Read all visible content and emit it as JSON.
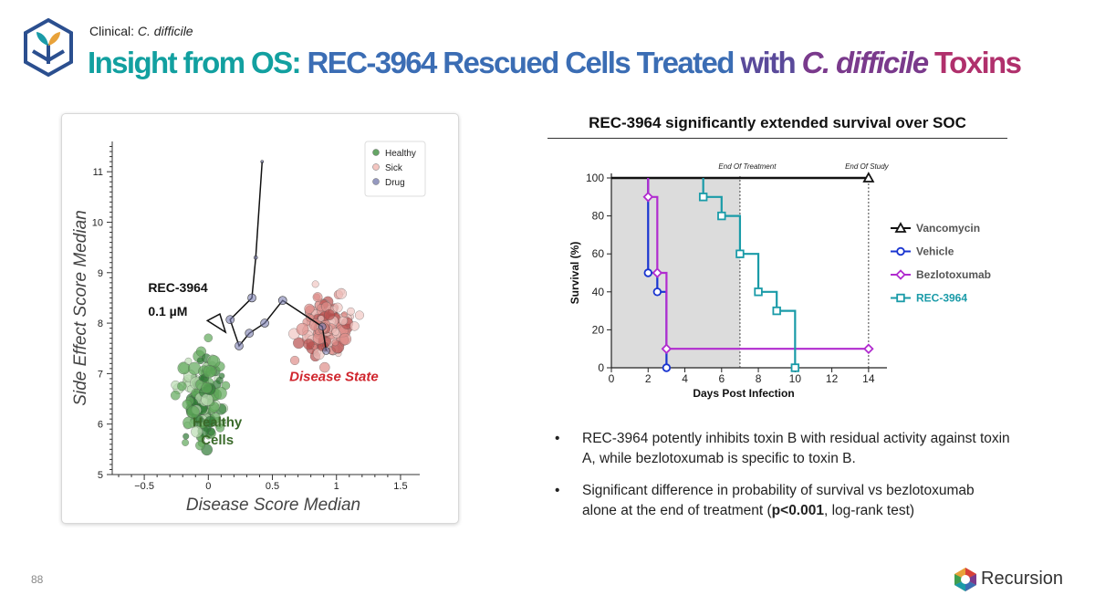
{
  "header": {
    "crumb_prefix": "Clinical:",
    "crumb_italic": "C. difficile",
    "title_parts": [
      "Insight from OS: REC-3964 Rescued Cells Treated ",
      "with ",
      "C. difficile",
      " Toxins"
    ]
  },
  "footer": {
    "page_number": "88",
    "brand": "Recursion"
  },
  "bullets": [
    {
      "text": "REC-3964 potently inhibits toxin B with residual activity against toxin A, while bezlotoxumab is specific to toxin B."
    },
    {
      "before": "Significant difference in probability of survival vs bezlotoxumab alone at the end of treatment (",
      "bold": "p<0.001",
      "after": ", log-rank test)"
    }
  ],
  "bullet_symbol": "•",
  "colors": {
    "healthy": "#3f8f3f",
    "sick": "#d9797a",
    "drug": "#7b7fb0",
    "vancomycin": "#111111",
    "vehicle": "#1a35d0",
    "bezlotoxumab": "#b12ccf",
    "rec3964": "#1a9ba8"
  },
  "chart_data": [
    {
      "type": "scatter",
      "xlabel": "Disease Score Median",
      "ylabel": "Side Effect Score Median",
      "xlim": [
        -0.75,
        1.65
      ],
      "ylim": [
        5.0,
        11.6
      ],
      "xticks": [
        -0.5,
        0,
        0.5,
        1,
        1.5
      ],
      "xtick_labels": [
        "−0.5",
        "0",
        "0.5",
        "1",
        "1.5"
      ],
      "yticks": [
        5,
        6,
        7,
        8,
        9,
        10,
        11
      ],
      "legend": {
        "placement": "top-right",
        "entries": [
          "Healthy",
          "Sick",
          "Drug"
        ]
      },
      "clusters": [
        {
          "name": "Healthy",
          "center": [
            -0.04,
            6.55
          ],
          "spread": [
            0.07,
            0.42
          ],
          "count": 170
        },
        {
          "name": "Sick",
          "center": [
            0.92,
            7.92
          ],
          "spread": [
            0.09,
            0.32
          ],
          "count": 170
        }
      ],
      "drug_trajectory": [
        [
          0.92,
          7.45
        ],
        [
          0.89,
          7.93
        ],
        [
          0.58,
          8.45
        ],
        [
          0.44,
          8.0
        ],
        [
          0.32,
          7.8
        ],
        [
          0.24,
          7.55
        ],
        [
          0.17,
          8.07
        ],
        [
          0.34,
          8.5
        ],
        [
          0.37,
          9.3
        ],
        [
          0.42,
          11.2
        ]
      ],
      "annotations": [
        {
          "text": "REC-3964",
          "at": [
            -0.47,
            8.62
          ]
        },
        {
          "text": "0.1 µM",
          "at": [
            -0.47,
            8.15
          ]
        },
        {
          "text": "Disease State",
          "at": [
            0.98,
            6.85
          ]
        },
        {
          "text": "Healthy",
          "at": [
            0.07,
            5.95
          ]
        },
        {
          "text": "Cells",
          "at": [
            0.07,
            5.6
          ]
        }
      ]
    },
    {
      "type": "line",
      "title": "REC-3964 significantly extended survival over SOC",
      "xlabel": "Days Post Infection",
      "ylabel": "Survival (%)",
      "xlim": [
        0,
        15
      ],
      "ylim": [
        0,
        100
      ],
      "xticks": [
        0,
        2,
        4,
        6,
        8,
        10,
        12,
        14
      ],
      "yticks": [
        0,
        20,
        40,
        60,
        80,
        100
      ],
      "shaded_region": [
        0,
        7
      ],
      "vlines": [
        {
          "x": 7,
          "label": "End Of Treatment"
        },
        {
          "x": 14,
          "label": "End Of Study"
        }
      ],
      "legend": {
        "placement": "right"
      },
      "series": [
        {
          "name": "Vancomycin",
          "marker": "triangle",
          "steps": [
            [
              0,
              100
            ],
            [
              14,
              100
            ]
          ],
          "markers": [
            [
              14,
              100
            ]
          ]
        },
        {
          "name": "Vehicle",
          "marker": "circle",
          "steps": [
            [
              2,
              100
            ],
            [
              2,
              50
            ],
            [
              2.5,
              50
            ],
            [
              2.5,
              40
            ],
            [
              3,
              40
            ],
            [
              3,
              0
            ]
          ],
          "markers": [
            [
              2,
              50
            ],
            [
              2.5,
              40
            ],
            [
              3,
              0
            ]
          ]
        },
        {
          "name": "Bezlotoxumab",
          "marker": "diamond",
          "steps": [
            [
              2,
              100
            ],
            [
              2,
              90
            ],
            [
              2.5,
              90
            ],
            [
              2.5,
              50
            ],
            [
              3,
              50
            ],
            [
              3,
              10
            ],
            [
              14,
              10
            ]
          ],
          "markers": [
            [
              2,
              90
            ],
            [
              2.5,
              50
            ],
            [
              3,
              10
            ],
            [
              14,
              10
            ]
          ]
        },
        {
          "name": "REC-3964",
          "marker": "square",
          "steps": [
            [
              5,
              100
            ],
            [
              5,
              90
            ],
            [
              6,
              90
            ],
            [
              6,
              80
            ],
            [
              7,
              80
            ],
            [
              7,
              60
            ],
            [
              8,
              60
            ],
            [
              8,
              40
            ],
            [
              9,
              40
            ],
            [
              9,
              30
            ],
            [
              10,
              30
            ],
            [
              10,
              0
            ]
          ],
          "markers": [
            [
              5,
              90
            ],
            [
              6,
              80
            ],
            [
              7,
              60
            ],
            [
              8,
              40
            ],
            [
              9,
              30
            ],
            [
              10,
              0
            ]
          ]
        }
      ]
    }
  ]
}
